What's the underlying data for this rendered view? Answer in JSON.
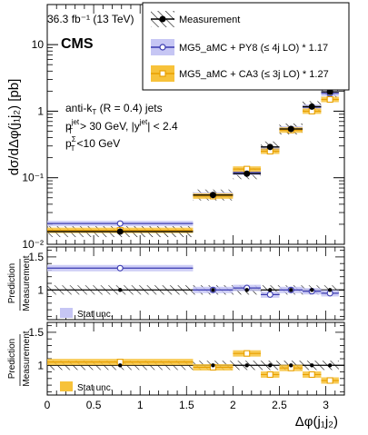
{
  "header": {
    "lumi_text": "36.3 fb⁻¹ (13 TeV)",
    "experiment": "CMS"
  },
  "annotations": {
    "jets": "anti-k",
    "jets_sub": "T",
    "jets_rest": " (R = 0.4) jets",
    "cut1": "> 30 GeV, |y",
    "cut1_end": "| < 2.4",
    "cut2": "<10 GeV"
  },
  "legend": {
    "measurement": "Measurement",
    "py8": "MG5_aMC + PY8 (≤ 4j LO) * 1.17",
    "ca3": "MG5_aMC + CA3 (≤ 3j LO) * 1.27"
  },
  "ratio_panels": {
    "ylabel_top": "Prediction",
    "ylabel_bottom": "Measurement",
    "stat_label": "Stat unc."
  },
  "colors": {
    "py8": "#3a3ab0",
    "py8_band": "#c6c6f4",
    "ca3": "#e8a000",
    "ca3_band": "#f7c23a",
    "measurement": "#000000"
  },
  "chart_data": [
    {
      "type": "scatter",
      "ylabel": "dσ/dΔφ(j₁j₂) [pb]",
      "yscale": "log",
      "ylim": [
        0.01,
        40
      ],
      "xlim": [
        0,
        3.2
      ],
      "yticks": [
        "10⁻²",
        "10⁻¹",
        "1",
        "10"
      ],
      "bins": [
        [
          0,
          1.57
        ],
        [
          1.57,
          2.0
        ],
        [
          2.0,
          2.3
        ],
        [
          2.3,
          2.5
        ],
        [
          2.5,
          2.75
        ],
        [
          2.75,
          2.95
        ],
        [
          2.95,
          3.14
        ]
      ],
      "series": [
        {
          "name": "Measurement",
          "values": [
            0.0155,
            0.055,
            0.115,
            0.29,
            0.54,
            1.17,
            1.95
          ]
        },
        {
          "name": "MG5_aMC + PY8 (≤ 4j LO) * 1.17",
          "values": [
            0.0205,
            0.055,
            0.12,
            0.27,
            0.54,
            1.15,
            1.85
          ]
        },
        {
          "name": "MG5_aMC + CA3 (≤ 3j LO) * 1.27",
          "values": [
            0.0162,
            0.053,
            0.135,
            0.25,
            0.52,
            1.0,
            1.5
          ]
        }
      ]
    },
    {
      "type": "scatter",
      "ylabel": "Prediction / Measurement",
      "ylim": [
        0.55,
        1.65
      ],
      "yticks": [
        "1",
        "1.5"
      ],
      "series": [
        {
          "name": "MG5_aMC + PY8 (≤ 4j LO) * 1.17",
          "values": [
            1.33,
            1.0,
            1.03,
            0.93,
            1.0,
            0.98,
            0.95
          ]
        }
      ]
    },
    {
      "type": "scatter",
      "ylabel": "Prediction / Measurement",
      "xlabel": "Δφ(j₁j₂)",
      "ylim": [
        0.55,
        1.65
      ],
      "yticks": [
        "1",
        "1.5"
      ],
      "xticks": [
        "0",
        "0.5",
        "1",
        "1.5",
        "2",
        "2.5",
        "3"
      ],
      "series": [
        {
          "name": "MG5_aMC + CA3 (≤ 3j LO) * 1.27",
          "values": [
            1.05,
            0.97,
            1.18,
            0.86,
            0.96,
            0.86,
            0.77
          ]
        }
      ]
    }
  ]
}
